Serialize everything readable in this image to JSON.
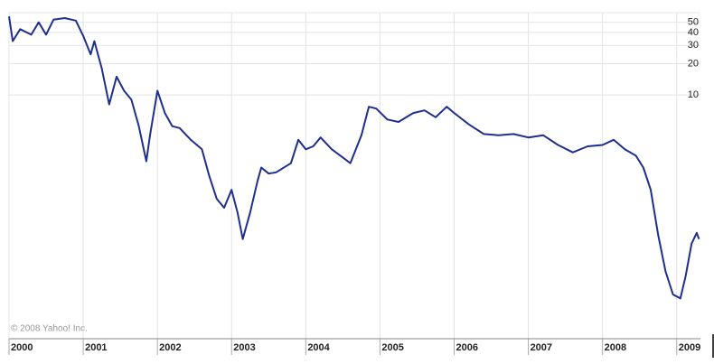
{
  "chart_data": {
    "type": "line",
    "log_scale": true,
    "grid": true,
    "copyright": "© 2008 Yahoo! Inc.",
    "xlim": [
      2000,
      2009.32
    ],
    "xticks": [
      2000,
      2001,
      2002,
      2003,
      2004,
      2005,
      2006,
      2007,
      2008,
      2009
    ],
    "ylim": [
      0.045,
      62
    ],
    "yticks": [
      50,
      40,
      30,
      20,
      10
    ],
    "x": [
      2000.0,
      2000.05,
      2000.15,
      2000.3,
      2000.4,
      2000.5,
      2000.6,
      2000.75,
      2000.9,
      2001.0,
      2001.1,
      2001.15,
      2001.25,
      2001.35,
      2001.45,
      2001.55,
      2001.65,
      2001.75,
      2001.85,
      2001.9,
      2002.0,
      2002.1,
      2002.2,
      2002.3,
      2002.45,
      2002.6,
      2002.7,
      2002.8,
      2002.9,
      2003.0,
      2003.08,
      2003.15,
      2003.25,
      2003.35,
      2003.4,
      2003.5,
      2003.6,
      2003.8,
      2003.9,
      2004.0,
      2004.1,
      2004.2,
      2004.35,
      2004.5,
      2004.6,
      2004.75,
      2004.85,
      2004.95,
      2005.1,
      2005.25,
      2005.45,
      2005.6,
      2005.75,
      2005.9,
      2006.0,
      2006.2,
      2006.4,
      2006.6,
      2006.8,
      2007.0,
      2007.2,
      2007.4,
      2007.6,
      2007.8,
      2008.0,
      2008.15,
      2008.3,
      2008.45,
      2008.55,
      2008.65,
      2008.75,
      2008.85,
      2008.95,
      2009.05,
      2009.12,
      2009.2,
      2009.27,
      2009.3
    ],
    "series": [
      {
        "color": "#1f2f8f",
        "values": [
          57,
          33,
          43,
          38,
          50,
          38,
          53,
          55,
          52,
          37,
          24.6,
          33,
          18,
          8.1,
          15,
          11,
          9.0,
          5.0,
          2.3,
          4.1,
          11,
          6.7,
          5.0,
          4.8,
          3.7,
          3.0,
          1.65,
          1.0,
          0.82,
          1.22,
          0.74,
          0.41,
          0.74,
          1.49,
          2.0,
          1.75,
          1.8,
          2.2,
          3.7,
          3.0,
          3.2,
          3.9,
          3.0,
          2.5,
          2.2,
          4.1,
          7.7,
          7.4,
          5.8,
          5.5,
          6.7,
          7.1,
          6.1,
          7.7,
          6.7,
          5.2,
          4.2,
          4.1,
          4.2,
          3.9,
          4.1,
          3.3,
          2.8,
          3.2,
          3.3,
          3.7,
          3.0,
          2.6,
          2.0,
          1.22,
          0.45,
          0.2,
          0.12,
          0.11,
          0.18,
          0.37,
          0.47,
          0.41
        ]
      }
    ]
  }
}
